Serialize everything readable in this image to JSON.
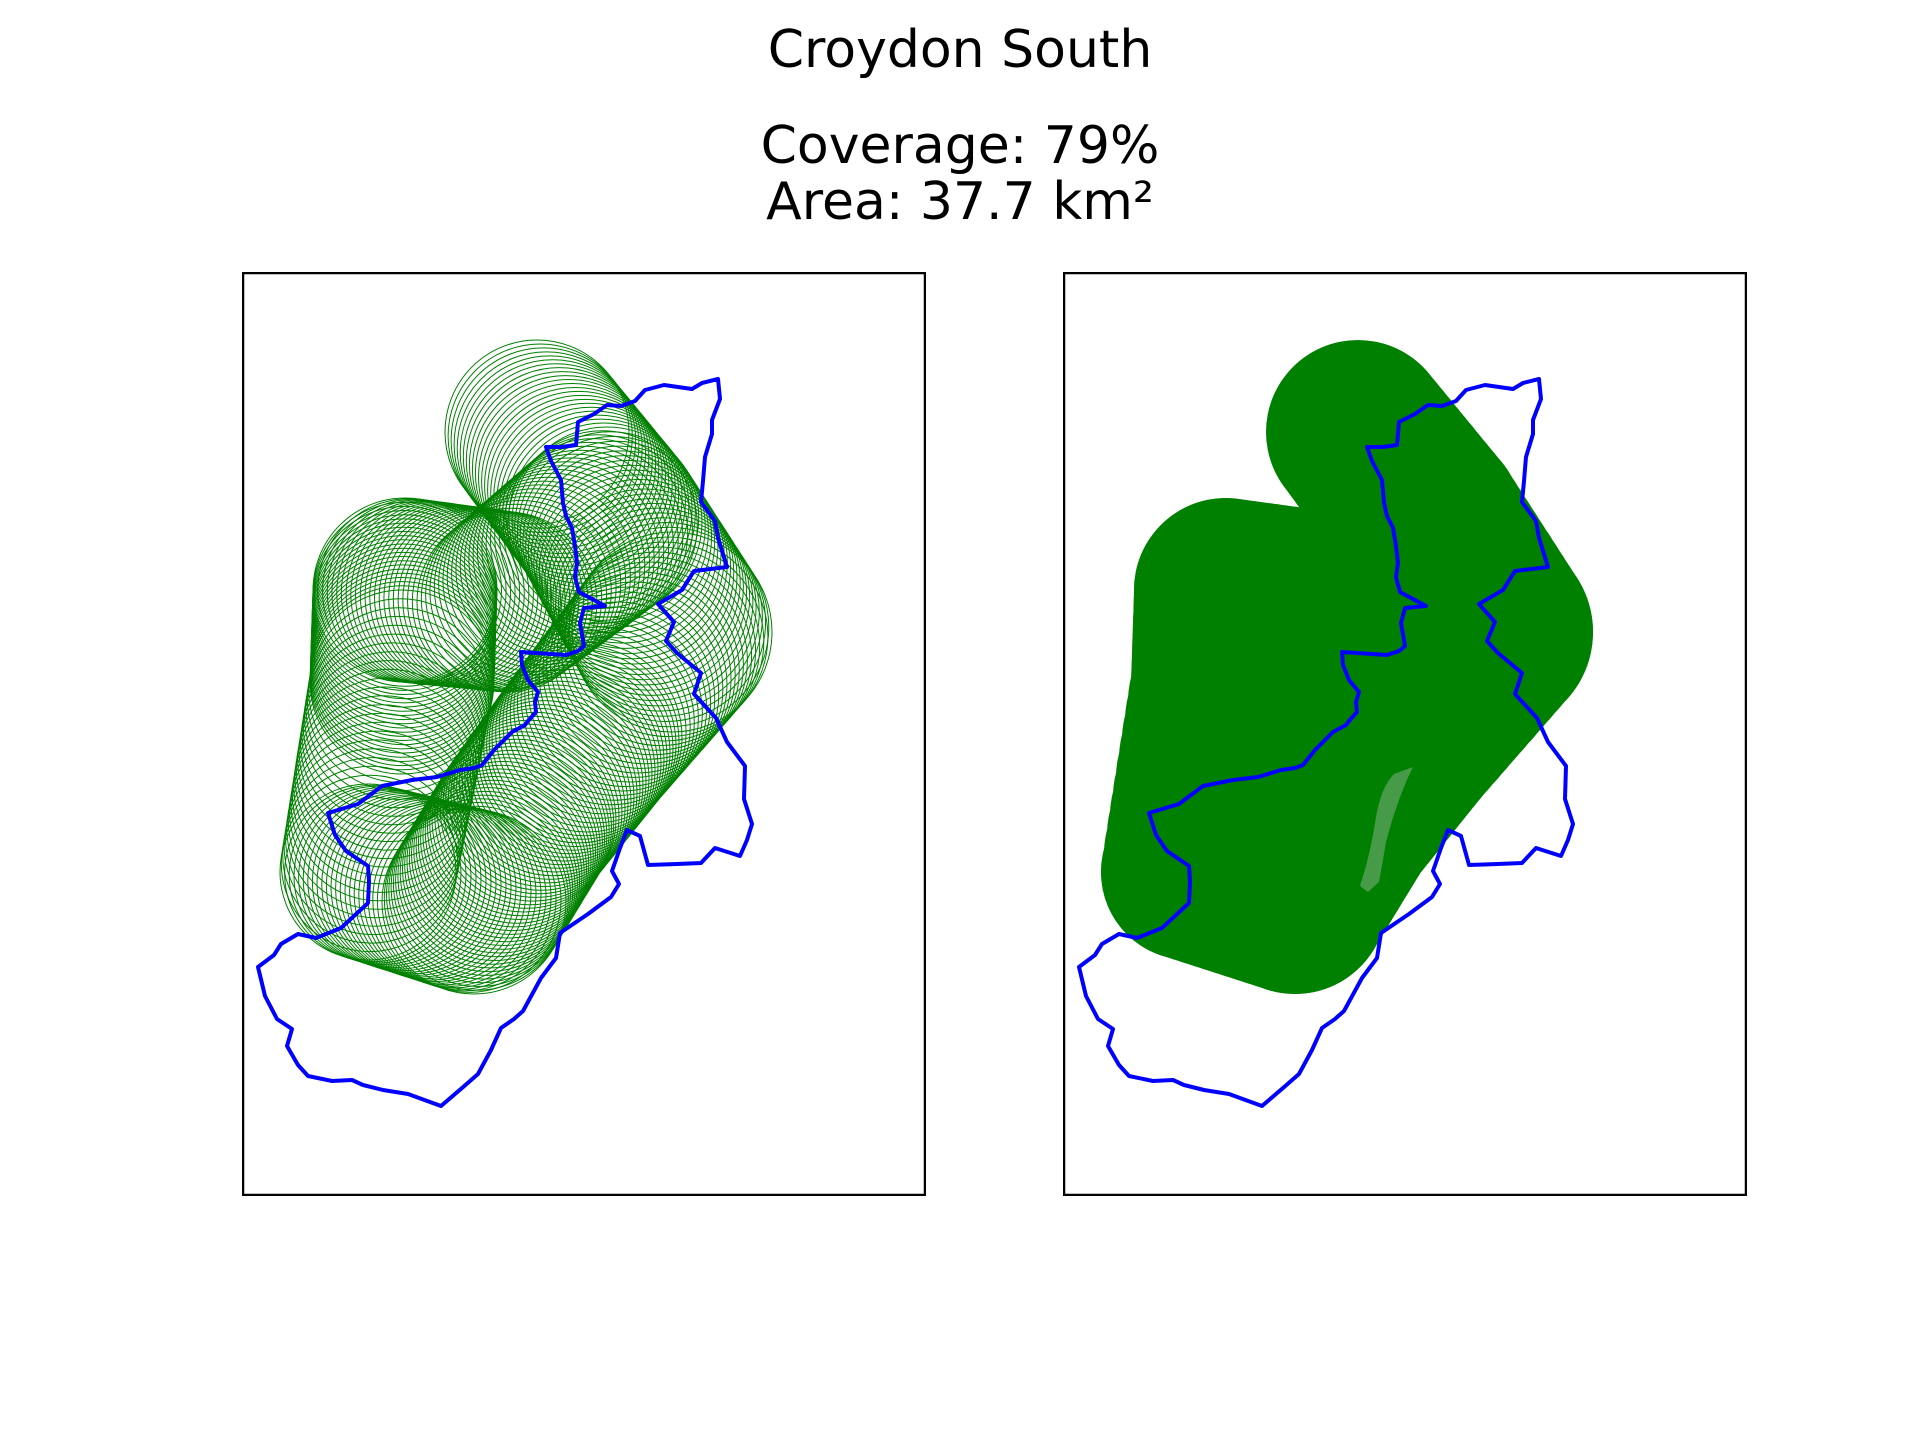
{
  "figure": {
    "title": "Croydon South",
    "coverage_text": "Coverage: 79%",
    "area_text": "Area: 37.7 km²"
  },
  "panels": [
    {
      "name": "outline-circles",
      "style": "circle outlines"
    },
    {
      "name": "filled-coverage",
      "style": "filled union"
    }
  ],
  "colors": {
    "boundary": "#0000ff",
    "coverage": "#008000",
    "frame": "#000000",
    "gap": "#4f9c4f"
  },
  "coverage_percent": 79,
  "area_km2": 37.7
}
